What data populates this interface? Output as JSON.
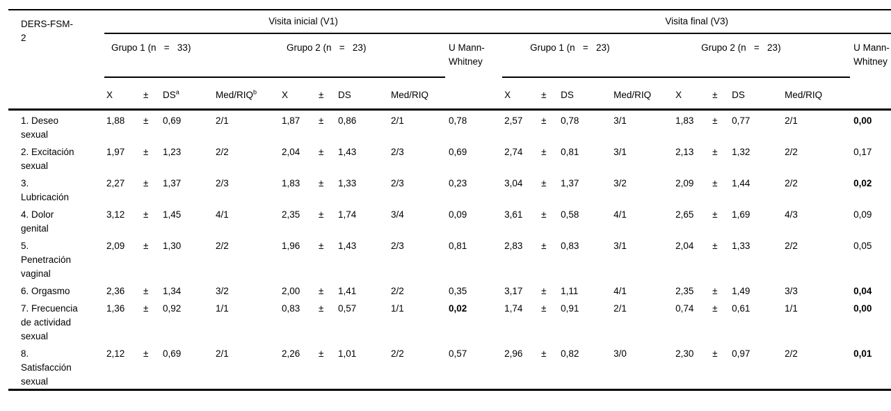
{
  "table": {
    "stub_header": "DERS-FSM-2",
    "visits": [
      {
        "label": "Visita inicial (V1)"
      },
      {
        "label": "Visita final (V3)"
      }
    ],
    "groups": [
      {
        "label": "Grupo 1 (n   =   33)"
      },
      {
        "label": "Grupo 2 (n   =   23)"
      },
      {
        "label": "Grupo 1 (n   =   23)"
      },
      {
        "label": "Grupo 2 (n   =   23)"
      }
    ],
    "umw_header": "U Mann-Whitney",
    "measures": {
      "x": "X",
      "pm": "±",
      "ds": "DS",
      "ds_sup": "a",
      "med": "Med/RIQ",
      "med_sup": "b"
    },
    "rows": [
      {
        "label": "1. Deseo sexual",
        "cells": [
          "1,88",
          "±",
          "0,69",
          "2/1",
          "1,87",
          "±",
          "0,86",
          "2/1",
          "0,78",
          "2,57",
          "±",
          "0,78",
          "3/1",
          "1,83",
          "±",
          "0,77",
          "2/1",
          "0,00"
        ],
        "bold": [
          17
        ]
      },
      {
        "label": "2. Excitación sexual",
        "cells": [
          "1,97",
          "±",
          "1,23",
          "2/2",
          "2,04",
          "±",
          "1,43",
          "2/3",
          "0,69",
          "2,74",
          "±",
          "0,81",
          "3/1",
          "2,13",
          "±",
          "1,32",
          "2/2",
          "0,17"
        ],
        "bold": []
      },
      {
        "label": "3. Lubricación",
        "cells": [
          "2,27",
          "±",
          "1,37",
          "2/3",
          "1,83",
          "±",
          "1,33",
          "2/3",
          "0,23",
          "3,04",
          "±",
          "1,37",
          "3/2",
          "2,09",
          "±",
          "1,44",
          "2/2",
          "0,02"
        ],
        "bold": [
          17
        ]
      },
      {
        "label": "4. Dolor genital",
        "cells": [
          "3,12",
          "±",
          "1,45",
          "4/1",
          "2,35",
          "±",
          "1,74",
          "3/4",
          "0,09",
          "3,61",
          "±",
          "0,58",
          "4/1",
          "2,65",
          "±",
          "1,69",
          "4/3",
          "0,09"
        ],
        "bold": []
      },
      {
        "label": "5. Penetración vaginal",
        "cells": [
          "2,09",
          "±",
          "1,30",
          "2/2",
          "1,96",
          "±",
          "1,43",
          "2/3",
          "0,81",
          "2,83",
          "±",
          "0,83",
          "3/1",
          "2,04",
          "±",
          "1,33",
          "2/2",
          "0,05"
        ],
        "bold": []
      },
      {
        "label": "6. Orgasmo",
        "cells": [
          "2,36",
          "±",
          "1,34",
          "3/2",
          "2,00",
          "±",
          "1,41",
          "2/2",
          "0,35",
          "3,17",
          "±",
          "1,11",
          "4/1",
          "2,35",
          "±",
          "1,49",
          "3/3",
          "0,04"
        ],
        "bold": [
          17
        ]
      },
      {
        "label": "7. Frecuencia de actividad sexual",
        "cells": [
          "1,36",
          "±",
          "0,92",
          "1/1",
          "0,83",
          "±",
          "0,57",
          "1/1",
          "0,02",
          "1,74",
          "±",
          "0,91",
          "2/1",
          "0,74",
          "±",
          "0,61",
          "1/1",
          "0,00"
        ],
        "bold": [
          8,
          17
        ]
      },
      {
        "label": "8. Satisfacción sexual",
        "cells": [
          "2,12",
          "±",
          "0,69",
          "2/1",
          "2,26",
          "±",
          "1,01",
          "2/2",
          "0,57",
          "2,96",
          "±",
          "0,82",
          "3/0",
          "2,30",
          "±",
          "0,97",
          "2/2",
          "0,01"
        ],
        "bold": [
          17
        ]
      }
    ]
  }
}
